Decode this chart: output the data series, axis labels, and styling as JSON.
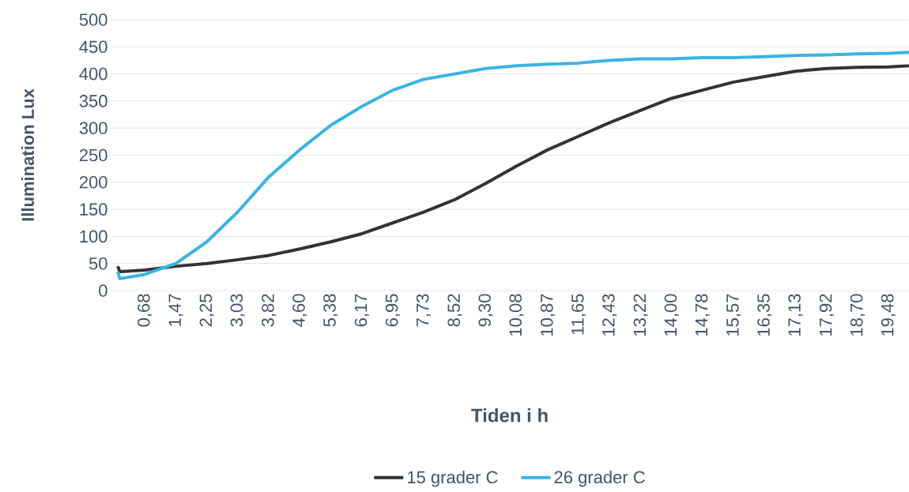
{
  "chart_data": {
    "type": "line",
    "xlabel": "Tiden i h",
    "ylabel": "Illumination Lux",
    "x": [
      0,
      0.05,
      0.68,
      1.47,
      2.25,
      3.03,
      3.82,
      4.6,
      5.38,
      6.17,
      6.95,
      7.73,
      8.52,
      9.3,
      10.08,
      10.87,
      11.65,
      12.43,
      13.22,
      14.0,
      14.78,
      15.57,
      16.35,
      17.13,
      17.92,
      18.7,
      19.48,
      20.0
    ],
    "series": [
      {
        "name": "15 grader C",
        "color": "#333333",
        "values": [
          45,
          35,
          38,
          45,
          50,
          57,
          65,
          77,
          90,
          105,
          125,
          145,
          168,
          198,
          230,
          260,
          285,
          310,
          333,
          355,
          370,
          385,
          395,
          405,
          410,
          412,
          413,
          415
        ]
      },
      {
        "name": "26 grader C",
        "color": "#3bb3e3",
        "values": [
          35,
          22,
          30,
          50,
          90,
          145,
          210,
          260,
          305,
          340,
          370,
          390,
          400,
          410,
          415,
          418,
          420,
          425,
          428,
          428,
          430,
          430,
          432,
          434,
          435,
          437,
          438,
          440
        ]
      }
    ],
    "xlim": [
      -0.18,
      20.0
    ],
    "xticks": [
      {
        "value": 0.68,
        "label": "0,68"
      },
      {
        "value": 1.47,
        "label": "1,47"
      },
      {
        "value": 2.25,
        "label": "2,25"
      },
      {
        "value": 3.03,
        "label": "3,03"
      },
      {
        "value": 3.82,
        "label": "3,82"
      },
      {
        "value": 4.6,
        "label": "4,60"
      },
      {
        "value": 5.38,
        "label": "5,38"
      },
      {
        "value": 6.17,
        "label": "6,17"
      },
      {
        "value": 6.95,
        "label": "6,95"
      },
      {
        "value": 7.73,
        "label": "7,73"
      },
      {
        "value": 8.52,
        "label": "8,52"
      },
      {
        "value": 9.3,
        "label": "9,30"
      },
      {
        "value": 10.08,
        "label": "10,08"
      },
      {
        "value": 10.87,
        "label": "10,87"
      },
      {
        "value": 11.65,
        "label": "11,65"
      },
      {
        "value": 12.43,
        "label": "12,43"
      },
      {
        "value": 13.22,
        "label": "13,22"
      },
      {
        "value": 14.0,
        "label": "14,00"
      },
      {
        "value": 14.78,
        "label": "14,78"
      },
      {
        "value": 15.57,
        "label": "15,57"
      },
      {
        "value": 16.35,
        "label": "16,35"
      },
      {
        "value": 17.13,
        "label": "17,13"
      },
      {
        "value": 17.92,
        "label": "17,92"
      },
      {
        "value": 18.7,
        "label": "18,70"
      },
      {
        "value": 19.48,
        "label": "19,48"
      }
    ],
    "ylim": [
      0,
      500
    ],
    "yticks": [
      0,
      50,
      100,
      150,
      200,
      250,
      300,
      350,
      400,
      450,
      500
    ],
    "grid": "y",
    "legend": "bottom",
    "marker": "none",
    "line_style": "solid"
  }
}
